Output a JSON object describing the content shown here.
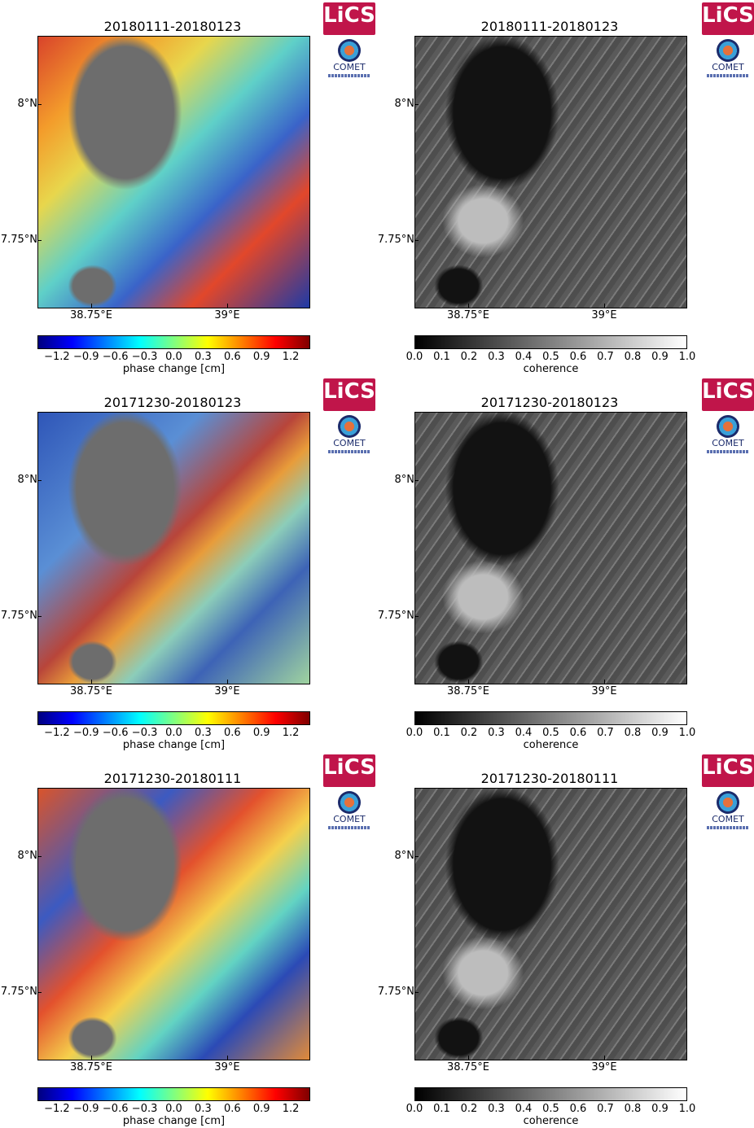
{
  "rows": [
    {
      "phase_title": "20180111-20180123",
      "coh_title": "20180111-20180123"
    },
    {
      "phase_title": "20171230-20180123",
      "coh_title": "20171230-20180123"
    },
    {
      "phase_title": "20171230-20180111",
      "coh_title": "20171230-20180111"
    }
  ],
  "axes": {
    "lat_ticks": [
      "8°N",
      "7.75°N"
    ],
    "lon_ticks": [
      "38.75°E",
      "39°E"
    ]
  },
  "phase_colorbar": {
    "label": "phase change [cm]",
    "ticks": [
      "−1.2",
      "−0.9",
      "−0.6",
      "−0.3",
      "0.0",
      "0.3",
      "0.6",
      "0.9",
      "1.2"
    ],
    "range": [
      -1.4,
      1.4
    ]
  },
  "coh_colorbar": {
    "label": "coherence",
    "ticks": [
      "0.0",
      "0.1",
      "0.2",
      "0.3",
      "0.4",
      "0.5",
      "0.6",
      "0.7",
      "0.8",
      "0.9",
      "1.0"
    ],
    "range": [
      0.0,
      1.0
    ]
  },
  "logos": {
    "lics": "LiCS",
    "comet": "COMET"
  },
  "colors": {
    "lics_brand": "#c0154a",
    "comet_brand": "#1b2b6b"
  }
}
